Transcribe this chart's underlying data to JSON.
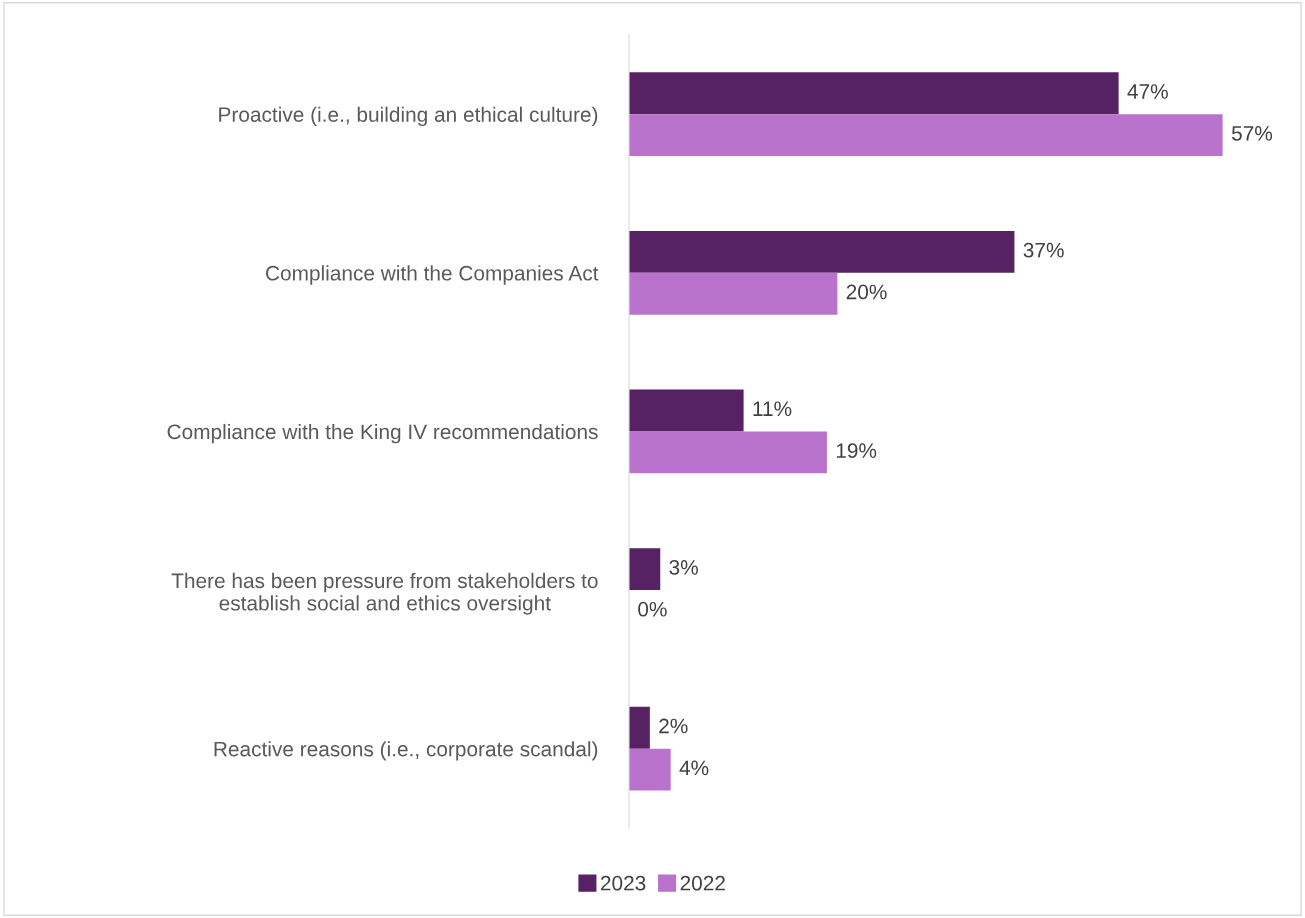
{
  "chart_data": {
    "type": "bar",
    "orientation": "horizontal",
    "categories": [
      "Proactive (i.e., building an ethical culture)",
      "Compliance with the Companies Act",
      "Compliance with the King IV recommendations",
      "There has been pressure from stakeholders to\nestablish social and ethics oversight",
      "Reactive reasons (i.e., corporate scandal)"
    ],
    "series": [
      {
        "name": "2023",
        "color": "#562263",
        "values": [
          47,
          37,
          11,
          3,
          2
        ],
        "value_labels": [
          "47%",
          "37%",
          "11%",
          "3%",
          "2%"
        ]
      },
      {
        "name": "2022",
        "color": "#b973cc",
        "values": [
          57,
          20,
          19,
          0,
          4
        ],
        "value_labels": [
          "57%",
          "20%",
          "19%",
          "0%",
          "4%"
        ]
      }
    ],
    "legend": "bottom",
    "grid": false
  }
}
